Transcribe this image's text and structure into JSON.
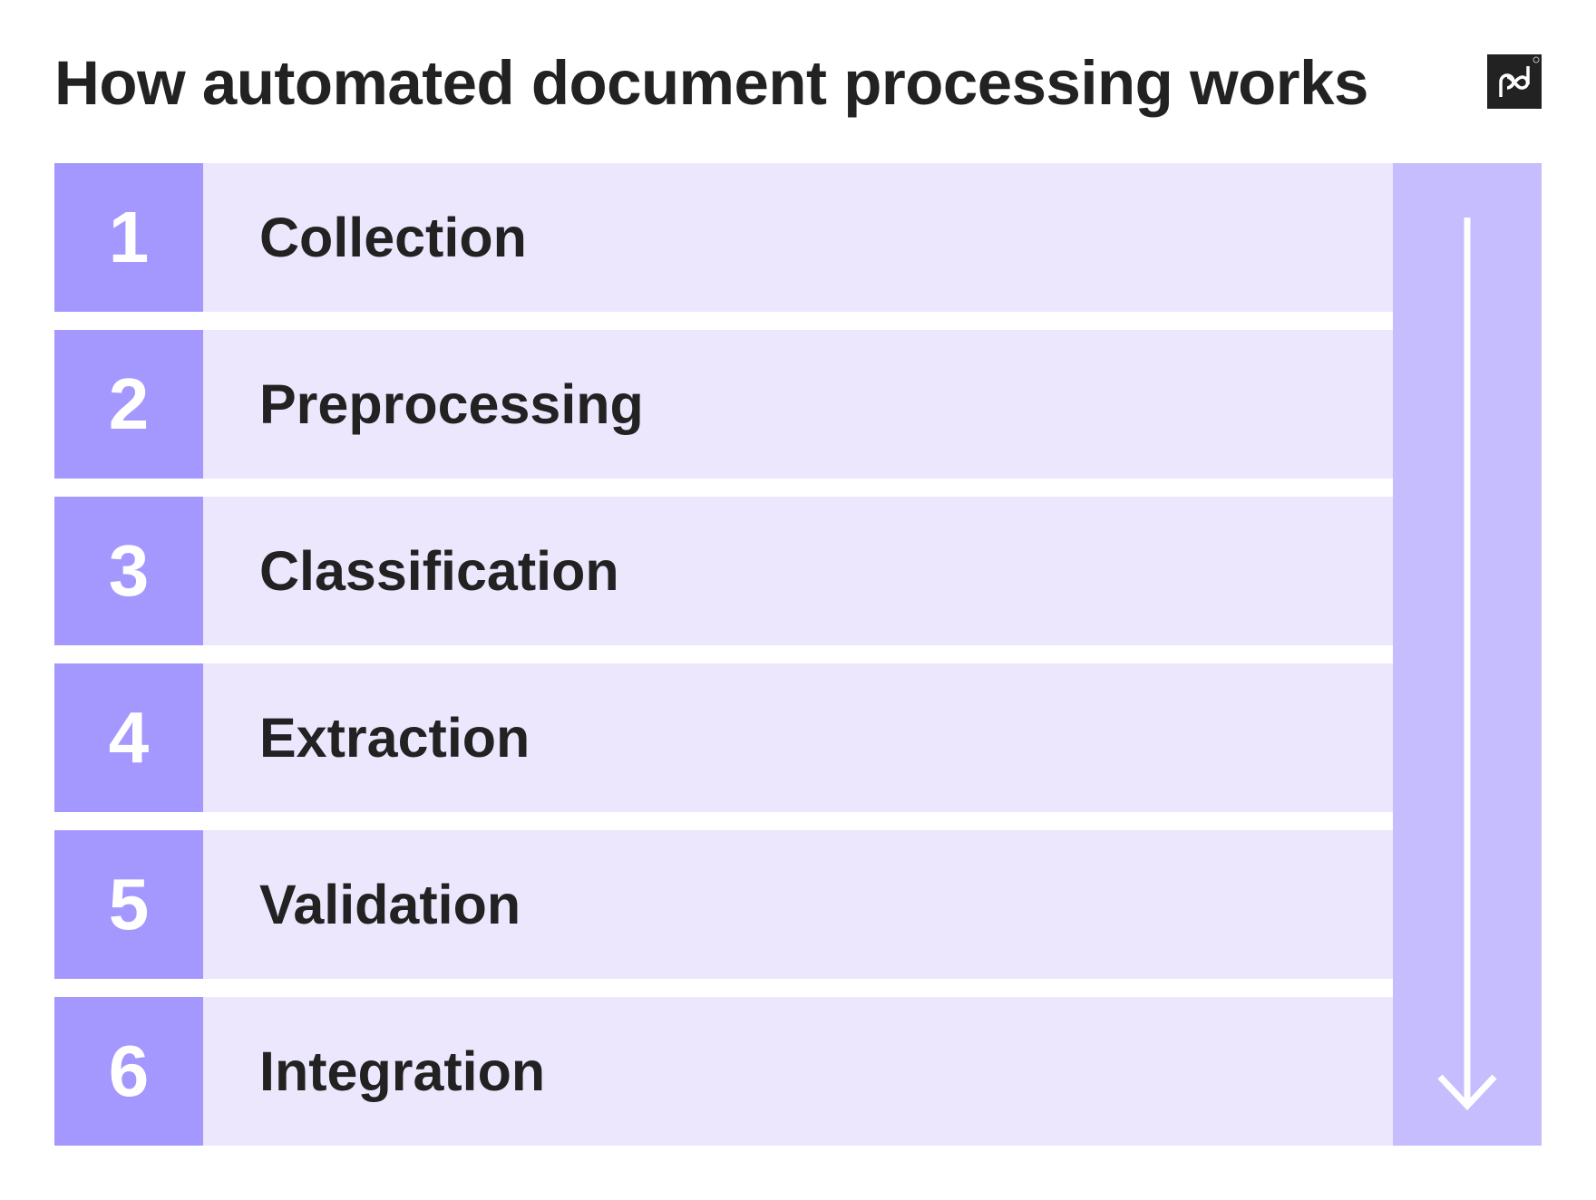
{
  "title": "How automated document processing works",
  "logo": {
    "icon": "pd-logo",
    "text": "pd"
  },
  "steps": [
    {
      "number": "1",
      "label": "Collection"
    },
    {
      "number": "2",
      "label": "Preprocessing"
    },
    {
      "number": "3",
      "label": "Classification"
    },
    {
      "number": "4",
      "label": "Extraction"
    },
    {
      "number": "5",
      "label": "Validation"
    },
    {
      "number": "6",
      "label": "Integration"
    }
  ],
  "colors": {
    "number_bg": "#a498ff",
    "row_bg": "#ece7fd",
    "rail_bg": "#c6bdfe",
    "text": "#222222"
  }
}
